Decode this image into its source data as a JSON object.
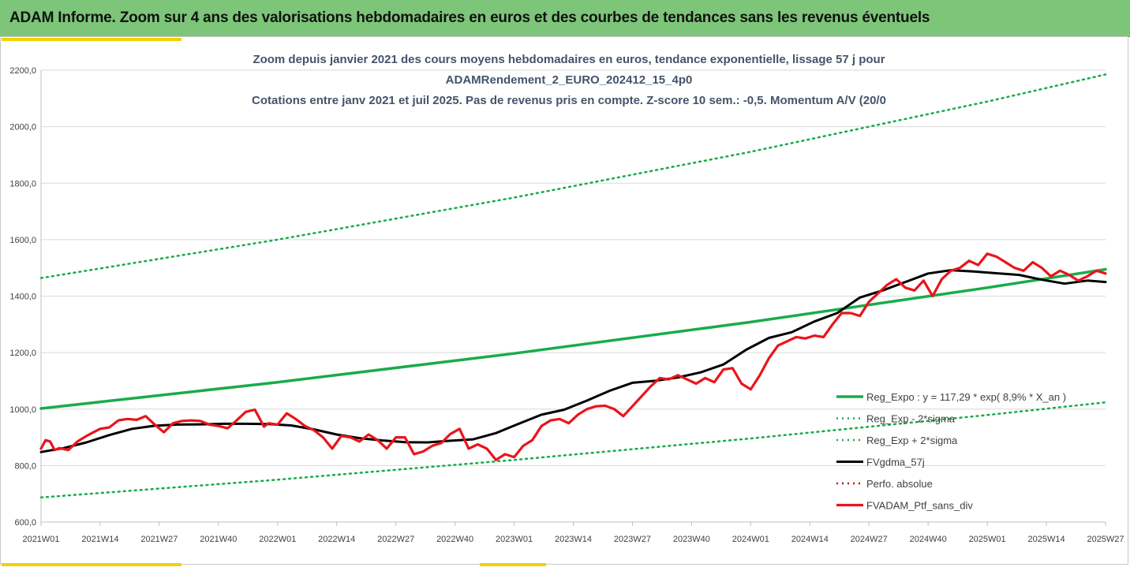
{
  "banner": {
    "title": "ADAM Informe. Zoom sur 4 ans des valorisations hebdomadaires en euros et des courbes de tendances sans les revenus éventuels"
  },
  "colors": {
    "banner_bg": "#7dc579",
    "accent": "#f5d000",
    "trend": "#1aab4b",
    "band": "#1aab4b",
    "smooth": "#000000",
    "price": "#e8151b",
    "perf": "#c00000"
  },
  "chart_data": {
    "type": "line",
    "title_lines": [
      "Zoom depuis janvier 2021 des cours moyens hebdomadaires  en euros, tendance exponentielle, lissage 57 j pour",
      "ADAMRendement_2_EURO_202412_15_4p0",
      "Cotations entre janv 2021 et juil 2025. Pas de revenus pris en compte. Z-score 10 sem.: -0,5. Momentum  A/V (20/0"
    ],
    "ylim": [
      600,
      2200
    ],
    "yticks": [
      600,
      800,
      1000,
      1200,
      1400,
      1600,
      1800,
      2000,
      2200
    ],
    "ytick_labels": [
      "600,0",
      "800,0",
      "1000,0",
      "1200,0",
      "1400,0",
      "1600,0",
      "1800,0",
      "2000,0",
      "2200,0"
    ],
    "x_range": [
      0,
      234
    ],
    "xticks": [
      0,
      13,
      26,
      39,
      52,
      65,
      78,
      91,
      104,
      117,
      130,
      143,
      156,
      169,
      182,
      195,
      208,
      221,
      234
    ],
    "xtick_labels": [
      "2021W01",
      "2021W14",
      "2021W27",
      "2021W40",
      "2022W01",
      "2022W14",
      "2022W27",
      "2022W40",
      "2023W01",
      "2023W14",
      "2023W27",
      "2023W40",
      "2024W01",
      "2024W14",
      "2024W27",
      "2024W40",
      "2025W01",
      "2025W14",
      "2025W27"
    ],
    "grid": "horizontal",
    "legend_position": "bottom-right",
    "series": [
      {
        "name": "Reg_Expo : y = 117,29 * exp( 8,9% *  X_an )",
        "style": "solid-thick",
        "x": [
          0,
          52,
          104,
          156,
          208,
          234
        ],
        "y": [
          1002,
          1095,
          1197,
          1308,
          1430,
          1495
        ]
      },
      {
        "name": "Reg_Exp - 2*sigma",
        "style": "dotted",
        "x": [
          0,
          52,
          104,
          156,
          208,
          234
        ],
        "y": [
          687,
          750,
          820,
          896,
          979,
          1024
        ]
      },
      {
        "name": "Reg_Exp + 2*sigma",
        "style": "dotted",
        "x": [
          0,
          52,
          104,
          156,
          208,
          234
        ],
        "y": [
          1464,
          1600,
          1749,
          1911,
          2089,
          2185
        ]
      },
      {
        "name": "FVgdma_57j",
        "style": "solid-black",
        "x": [
          0,
          5,
          10,
          15,
          20,
          25,
          30,
          35,
          40,
          45,
          50,
          55,
          60,
          65,
          70,
          75,
          80,
          85,
          90,
          95,
          100,
          105,
          110,
          115,
          120,
          125,
          130,
          135,
          140,
          145,
          150,
          155,
          160,
          165,
          170,
          175,
          180,
          185,
          190,
          195,
          200,
          205,
          210,
          215,
          220,
          225,
          230,
          234
        ],
        "y": [
          848,
          862,
          882,
          908,
          930,
          941,
          945,
          946,
          948,
          948,
          947,
          942,
          928,
          910,
          897,
          889,
          883,
          882,
          888,
          893,
          915,
          948,
          980,
          998,
          1030,
          1065,
          1093,
          1100,
          1112,
          1130,
          1158,
          1210,
          1252,
          1272,
          1310,
          1340,
          1395,
          1420,
          1450,
          1480,
          1492,
          1487,
          1481,
          1475,
          1458,
          1444,
          1455,
          1450
        ]
      },
      {
        "name": "Perfo. absolue",
        "style": "dotted-red",
        "x": [],
        "y": []
      },
      {
        "name": "FVADAM_Ptf_sans_div",
        "style": "solid-red-thick",
        "x": [
          0,
          1,
          2,
          3,
          4,
          6,
          8,
          10,
          12,
          13,
          15,
          17,
          19,
          21,
          23,
          25,
          27,
          29,
          31,
          33,
          35,
          37,
          39,
          41,
          43,
          45,
          47,
          49,
          50,
          52,
          54,
          56,
          58,
          60,
          62,
          64,
          66,
          68,
          70,
          72,
          74,
          76,
          78,
          80,
          82,
          84,
          86,
          88,
          90,
          92,
          94,
          96,
          98,
          100,
          102,
          104,
          106,
          108,
          110,
          112,
          114,
          116,
          118,
          120,
          122,
          124,
          126,
          128,
          130,
          132,
          134,
          136,
          138,
          140,
          142,
          144,
          146,
          148,
          150,
          152,
          154,
          156,
          158,
          160,
          162,
          164,
          166,
          168,
          170,
          172,
          174,
          176,
          178,
          180,
          182,
          184,
          186,
          188,
          190,
          192,
          194,
          196,
          198,
          200,
          202,
          204,
          206,
          208,
          210,
          212,
          214,
          216,
          218,
          220,
          222,
          224,
          226,
          228,
          230,
          232,
          234
        ],
        "y": [
          860,
          890,
          885,
          855,
          862,
          855,
          885,
          905,
          922,
          930,
          935,
          960,
          965,
          962,
          975,
          945,
          918,
          950,
          958,
          960,
          958,
          945,
          940,
          932,
          960,
          990,
          998,
          938,
          950,
          945,
          985,
          965,
          940,
          925,
          900,
          860,
          905,
          900,
          885,
          910,
          890,
          860,
          900,
          900,
          840,
          850,
          870,
          880,
          912,
          930,
          860,
          875,
          860,
          820,
          840,
          830,
          870,
          890,
          940,
          960,
          965,
          950,
          980,
          1000,
          1010,
          1012,
          1000,
          975,
          1010,
          1045,
          1080,
          1110,
          1105,
          1120,
          1105,
          1090,
          1110,
          1095,
          1140,
          1145,
          1090,
          1070,
          1120,
          1180,
          1225,
          1240,
          1255,
          1250,
          1260,
          1255,
          1300,
          1340,
          1340,
          1330,
          1380,
          1410,
          1440,
          1460,
          1430,
          1420,
          1455,
          1400,
          1460,
          1490,
          1500,
          1525,
          1510,
          1550,
          1540,
          1520,
          1500,
          1490,
          1520,
          1500,
          1470,
          1490,
          1475,
          1455,
          1470,
          1490,
          1480
        ]
      }
    ]
  }
}
